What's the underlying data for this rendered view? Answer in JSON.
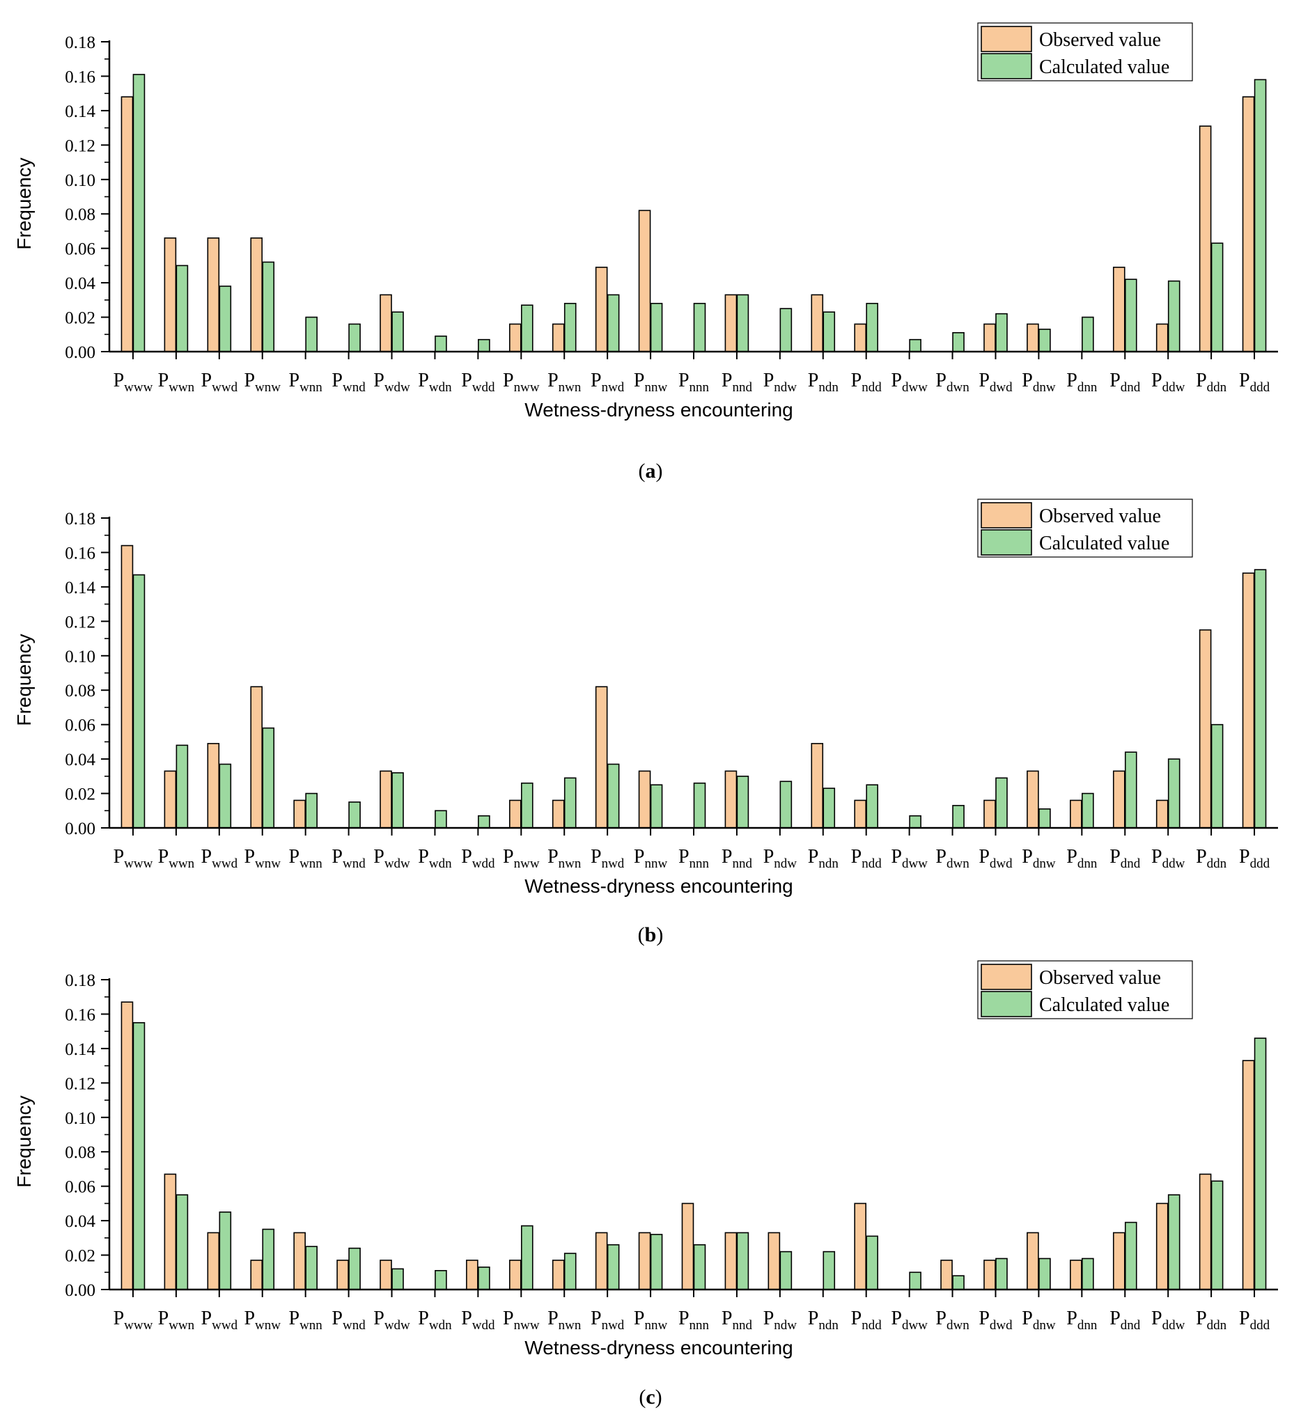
{
  "figure": {
    "panels": [
      {
        "id": "a",
        "label_open": "(",
        "label_letter": "a",
        "label_close": ")"
      },
      {
        "id": "b",
        "label_open": "(",
        "label_letter": "b",
        "label_close": ")"
      },
      {
        "id": "c",
        "label_open": "(",
        "label_letter": "c",
        "label_close": ")"
      }
    ]
  },
  "colors": {
    "observed": "#f9c99b",
    "calculated": "#9dd9a0",
    "stroke": "#000000"
  },
  "chart_data": [
    {
      "type": "bar",
      "title": "",
      "xlabel": "Wetness-dryness encountering",
      "ylabel": "Frequency",
      "ylim": [
        0,
        0.18
      ],
      "yticks": [
        "0.00",
        "0.02",
        "0.04",
        "0.06",
        "0.08",
        "0.10",
        "0.12",
        "0.14",
        "0.16",
        "0.18"
      ],
      "legend_position": "top-right",
      "category_prefix": "P",
      "categories": [
        "www",
        "wwn",
        "wwd",
        "wnw",
        "wnn",
        "wnd",
        "wdw",
        "wdn",
        "wdd",
        "nww",
        "nwn",
        "nwd",
        "nnw",
        "nnn",
        "nnd",
        "ndw",
        "ndn",
        "ndd",
        "dww",
        "dwn",
        "dwd",
        "dnw",
        "dnn",
        "dnd",
        "ddw",
        "ddn",
        "ddd"
      ],
      "series": [
        {
          "name": "Observed value",
          "values": [
            0.148,
            0.066,
            0.066,
            0.066,
            0,
            0,
            0.033,
            0,
            0,
            0.016,
            0.016,
            0.049,
            0.082,
            0,
            0.033,
            0,
            0.033,
            0.016,
            0,
            0,
            0.016,
            0.016,
            0,
            0.049,
            0.016,
            0.131,
            0.148
          ]
        },
        {
          "name": "Calculated value",
          "values": [
            0.161,
            0.05,
            0.038,
            0.052,
            0.02,
            0.016,
            0.023,
            0.009,
            0.007,
            0.027,
            0.028,
            0.033,
            0.028,
            0.028,
            0.033,
            0.025,
            0.023,
            0.028,
            0.007,
            0.011,
            0.022,
            0.013,
            0.02,
            0.042,
            0.041,
            0.063,
            0.158
          ]
        }
      ]
    },
    {
      "type": "bar",
      "title": "",
      "xlabel": "Wetness-dryness encountering",
      "ylabel": "Frequency",
      "ylim": [
        0,
        0.18
      ],
      "yticks": [
        "0.00",
        "0.02",
        "0.04",
        "0.06",
        "0.08",
        "0.10",
        "0.12",
        "0.14",
        "0.16",
        "0.18"
      ],
      "legend_position": "top-right",
      "category_prefix": "P",
      "categories": [
        "www",
        "wwn",
        "wwd",
        "wnw",
        "wnn",
        "wnd",
        "wdw",
        "wdn",
        "wdd",
        "nww",
        "nwn",
        "nwd",
        "nnw",
        "nnn",
        "nnd",
        "ndw",
        "ndn",
        "ndd",
        "dww",
        "dwn",
        "dwd",
        "dnw",
        "dnn",
        "dnd",
        "ddw",
        "ddn",
        "ddd"
      ],
      "series": [
        {
          "name": "Observed value",
          "values": [
            0.164,
            0.033,
            0.049,
            0.082,
            0.016,
            0,
            0.033,
            0,
            0,
            0.016,
            0.016,
            0.082,
            0.033,
            0,
            0.033,
            0,
            0.049,
            0.016,
            0,
            0,
            0.016,
            0.033,
            0.016,
            0.033,
            0.016,
            0.115,
            0.148
          ]
        },
        {
          "name": "Calculated value",
          "values": [
            0.147,
            0.048,
            0.037,
            0.058,
            0.02,
            0.015,
            0.032,
            0.01,
            0.007,
            0.026,
            0.029,
            0.037,
            0.025,
            0.026,
            0.03,
            0.027,
            0.023,
            0.025,
            0.007,
            0.013,
            0.029,
            0.011,
            0.02,
            0.044,
            0.04,
            0.06,
            0.15
          ]
        }
      ]
    },
    {
      "type": "bar",
      "title": "",
      "xlabel": "Wetness-dryness encountering",
      "ylabel": "Frequency",
      "ylim": [
        0,
        0.18
      ],
      "yticks": [
        "0.00",
        "0.02",
        "0.04",
        "0.06",
        "0.08",
        "0.10",
        "0.12",
        "0.14",
        "0.16",
        "0.18"
      ],
      "legend_position": "top-right",
      "category_prefix": "P",
      "categories": [
        "www",
        "wwn",
        "wwd",
        "wnw",
        "wnn",
        "wnd",
        "wdw",
        "wdn",
        "wdd",
        "nww",
        "nwn",
        "nwd",
        "nnw",
        "nnn",
        "nnd",
        "ndw",
        "ndn",
        "ndd",
        "dww",
        "dwn",
        "dwd",
        "dnw",
        "dnn",
        "dnd",
        "ddw",
        "ddn",
        "ddd"
      ],
      "series": [
        {
          "name": "Observed value",
          "values": [
            0.167,
            0.067,
            0.033,
            0.017,
            0.033,
            0.017,
            0.017,
            0,
            0.017,
            0.017,
            0.017,
            0.033,
            0.033,
            0.05,
            0.033,
            0.033,
            0,
            0.05,
            0,
            0.017,
            0.017,
            0.033,
            0.017,
            0.033,
            0.05,
            0.067,
            0.133
          ]
        },
        {
          "name": "Calculated value",
          "values": [
            0.155,
            0.055,
            0.045,
            0.035,
            0.025,
            0.024,
            0.012,
            0.011,
            0.013,
            0.037,
            0.021,
            0.026,
            0.032,
            0.026,
            0.033,
            0.022,
            0.022,
            0.031,
            0.01,
            0.008,
            0.018,
            0.018,
            0.018,
            0.039,
            0.055,
            0.063,
            0.146
          ]
        }
      ]
    }
  ]
}
